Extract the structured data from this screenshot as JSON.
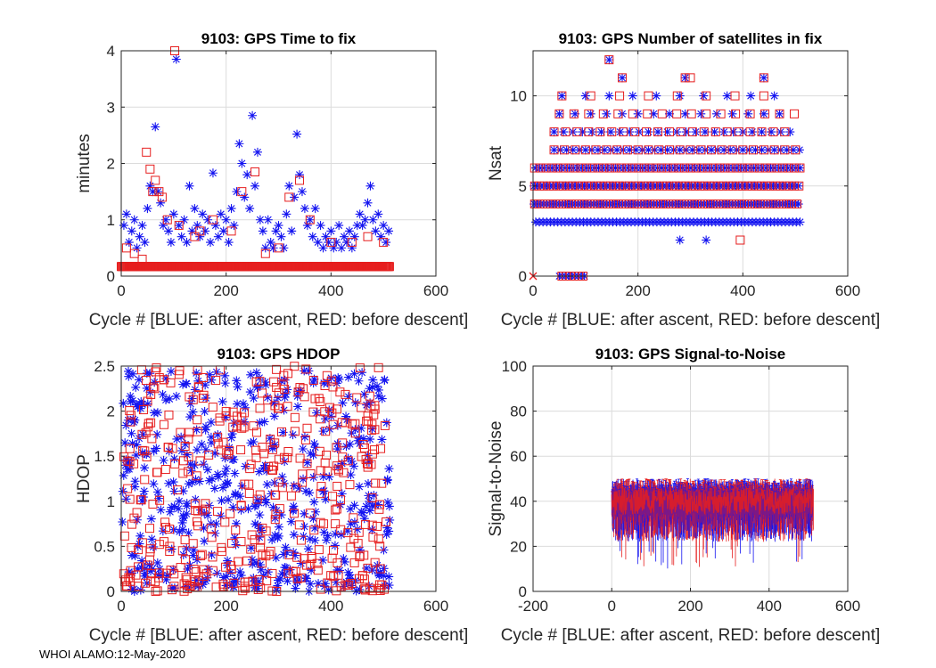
{
  "footer": "WHOI ALAMO:12-May-2020",
  "colors": {
    "blue": "#1414f0",
    "red": "#e61e1e",
    "grid": "#dcdcdc",
    "axis": "#262626"
  },
  "chart_data": [
    {
      "type": "scatter",
      "title": "9103: GPS Time to fix",
      "xlabel": "Cycle #  [BLUE: after ascent, RED: before descent]",
      "ylabel": "minutes",
      "xlim": [
        0,
        600
      ],
      "ylim": [
        0,
        4
      ],
      "xticks": [
        "0",
        "200",
        "400",
        "600"
      ],
      "yticks": [
        "0",
        "1",
        "2",
        "3",
        "4"
      ],
      "grid": true,
      "series": [
        {
          "name": "after ascent",
          "marker": "asterisk",
          "color": "blue",
          "points": [
            [
              5,
              0.9
            ],
            [
              10,
              1.1
            ],
            [
              15,
              0.6
            ],
            [
              20,
              0.8
            ],
            [
              25,
              1.0
            ],
            [
              30,
              0.5
            ],
            [
              35,
              0.7
            ],
            [
              40,
              0.9
            ],
            [
              45,
              0.6
            ],
            [
              50,
              1.2
            ],
            [
              55,
              1.6
            ],
            [
              60,
              1.5
            ],
            [
              65,
              2.65
            ],
            [
              70,
              1.5
            ],
            [
              75,
              1.3
            ],
            [
              80,
              0.9
            ],
            [
              85,
              1.0
            ],
            [
              90,
              0.8
            ],
            [
              95,
              0.6
            ],
            [
              100,
              1.1
            ],
            [
              105,
              3.85
            ],
            [
              110,
              0.9
            ],
            [
              115,
              0.7
            ],
            [
              120,
              1.0
            ],
            [
              125,
              0.6
            ],
            [
              130,
              1.6
            ],
            [
              135,
              0.8
            ],
            [
              140,
              1.2
            ],
            [
              145,
              0.9
            ],
            [
              150,
              0.7
            ],
            [
              155,
              1.1
            ],
            [
              160,
              0.8
            ],
            [
              165,
              1.0
            ],
            [
              170,
              0.6
            ],
            [
              175,
              1.83
            ],
            [
              180,
              0.9
            ],
            [
              185,
              0.7
            ],
            [
              190,
              1.1
            ],
            [
              195,
              0.8
            ],
            [
              200,
              1.0
            ],
            [
              205,
              0.6
            ],
            [
              210,
              1.2
            ],
            [
              215,
              0.9
            ],
            [
              220,
              1.5
            ],
            [
              225,
              2.35
            ],
            [
              230,
              2.0
            ],
            [
              235,
              1.4
            ],
            [
              240,
              1.8
            ],
            [
              245,
              1.2
            ],
            [
              250,
              2.85
            ],
            [
              255,
              1.6
            ],
            [
              260,
              2.2
            ],
            [
              265,
              1.0
            ],
            [
              270,
              0.8
            ],
            [
              275,
              0.5
            ],
            [
              280,
              1.0
            ],
            [
              285,
              0.6
            ],
            [
              290,
              0.5
            ],
            [
              295,
              0.8
            ],
            [
              300,
              0.9
            ],
            [
              305,
              0.7
            ],
            [
              310,
              0.5
            ],
            [
              315,
              1.1
            ],
            [
              320,
              1.6
            ],
            [
              325,
              0.8
            ],
            [
              330,
              1.4
            ],
            [
              335,
              2.52
            ],
            [
              340,
              1.8
            ],
            [
              345,
              1.5
            ],
            [
              350,
              1.2
            ],
            [
              355,
              0.9
            ],
            [
              360,
              1.0
            ],
            [
              365,
              0.7
            ],
            [
              370,
              1.2
            ],
            [
              375,
              0.6
            ],
            [
              380,
              0.9
            ],
            [
              385,
              0.5
            ],
            [
              390,
              0.7
            ],
            [
              395,
              0.6
            ],
            [
              400,
              0.8
            ],
            [
              405,
              0.5
            ],
            [
              410,
              0.6
            ],
            [
              415,
              0.9
            ],
            [
              420,
              0.5
            ],
            [
              425,
              0.7
            ],
            [
              430,
              0.6
            ],
            [
              435,
              0.8
            ],
            [
              440,
              0.5
            ],
            [
              445,
              0.7
            ],
            [
              450,
              0.9
            ],
            [
              455,
              1.1
            ],
            [
              460,
              0.9
            ],
            [
              465,
              1.0
            ],
            [
              470,
              1.3
            ],
            [
              475,
              1.6
            ],
            [
              480,
              1.0
            ],
            [
              485,
              0.8
            ],
            [
              490,
              1.1
            ],
            [
              495,
              0.7
            ],
            [
              500,
              0.9
            ],
            [
              505,
              0.6
            ],
            [
              510,
              0.8
            ]
          ]
        },
        {
          "name": "before descent",
          "marker": "square",
          "color": "red",
          "points": [
            [
              10,
              0.5
            ],
            [
              25,
              0.4
            ],
            [
              40,
              0.3
            ],
            [
              48,
              2.2
            ],
            [
              55,
              1.9
            ],
            [
              60,
              1.5
            ],
            [
              65,
              1.7
            ],
            [
              72,
              1.5
            ],
            [
              78,
              1.4
            ],
            [
              88,
              1.0
            ],
            [
              102,
              4.0
            ],
            [
              110,
              0.9
            ],
            [
              140,
              0.7
            ],
            [
              150,
              0.8
            ],
            [
              175,
              1.0
            ],
            [
              210,
              0.8
            ],
            [
              230,
              1.5
            ],
            [
              255,
              1.85
            ],
            [
              275,
              0.4
            ],
            [
              300,
              0.5
            ],
            [
              320,
              1.4
            ],
            [
              340,
              1.7
            ],
            [
              360,
              1.0
            ],
            [
              400,
              0.6
            ],
            [
              440,
              0.6
            ],
            [
              470,
              0.7
            ],
            [
              500,
              0.6
            ]
          ],
          "baseline": {
            "y": 0.17,
            "from": 0,
            "to": 512,
            "step": 1.5
          }
        }
      ]
    },
    {
      "type": "scatter",
      "title": "9103: GPS Number of satellites in fix",
      "xlabel": "Cycle #  [BLUE: after ascent, RED: before descent]",
      "ylabel": "Nsat",
      "xlim": [
        0,
        600
      ],
      "ylim": [
        0,
        12.5
      ],
      "xticks": [
        "0",
        "200",
        "400",
        "600"
      ],
      "yticks": [
        "0",
        "5",
        "10"
      ],
      "grid": true,
      "series": [
        {
          "name": "after ascent",
          "marker": "asterisk",
          "color": "blue",
          "rows": [
            {
              "y": 3,
              "from": 5,
              "to": 510,
              "step": 7
            },
            {
              "y": 4,
              "from": 2,
              "to": 510,
              "step": 6
            },
            {
              "y": 5,
              "from": 2,
              "to": 510,
              "step": 6
            },
            {
              "y": 6,
              "from": 5,
              "to": 510,
              "step": 8
            },
            {
              "y": 7,
              "from": 40,
              "to": 510,
              "step": 12
            },
            {
              "y": 8,
              "from": 40,
              "to": 490,
              "step": 18
            },
            {
              "y": 9,
              "from": 50,
              "to": 470,
              "step": 30
            },
            {
              "y": 10,
              "from": 55,
              "to": 460,
              "step": 45
            },
            {
              "y": 0,
              "from": 50,
              "to": 100,
              "step": 6
            }
          ],
          "points": [
            [
              145,
              12
            ],
            [
              170,
              11
            ],
            [
              290,
              11
            ],
            [
              440,
              11
            ],
            [
              280,
              2
            ],
            [
              330,
              2
            ]
          ]
        },
        {
          "name": "before descent",
          "marker": "square",
          "color": "red",
          "rows": [
            {
              "y": 4,
              "from": 3,
              "to": 510,
              "step": 10
            },
            {
              "y": 5,
              "from": 3,
              "to": 510,
              "step": 9
            },
            {
              "y": 6,
              "from": 3,
              "to": 510,
              "step": 11
            },
            {
              "y": 7,
              "from": 40,
              "to": 500,
              "step": 20
            },
            {
              "y": 8,
              "from": 40,
              "to": 490,
              "step": 22
            },
            {
              "y": 9,
              "from": 50,
              "to": 510,
              "step": 28
            },
            {
              "y": 10,
              "from": 55,
              "to": 460,
              "step": 55
            },
            {
              "y": 0,
              "from": 55,
              "to": 95,
              "step": 8
            }
          ],
          "points": [
            [
              145,
              12
            ],
            [
              170,
              11
            ],
            [
              290,
              11
            ],
            [
              300,
              11
            ],
            [
              440,
              11
            ],
            [
              395,
              2
            ]
          ]
        }
      ]
    },
    {
      "type": "scatter",
      "title": "9103: GPS HDOP",
      "xlabel": "Cycle #  [BLUE: after ascent, RED: before descent]",
      "ylabel": "HDOP",
      "xlim": [
        0,
        600
      ],
      "ylim": [
        0,
        2.5
      ],
      "xticks": [
        "0",
        "200",
        "400",
        "600"
      ],
      "yticks": [
        "0",
        "0.5",
        "1",
        "1.5",
        "2",
        "2.5"
      ],
      "grid": true,
      "series": [
        {
          "name": "after ascent",
          "marker": "asterisk",
          "color": "blue",
          "random": {
            "count": 520,
            "x": [
              2,
              512
            ],
            "y": [
              0,
              2.45
            ],
            "seed": 11
          }
        },
        {
          "name": "before descent",
          "marker": "square",
          "color": "red",
          "random": {
            "count": 430,
            "x": [
              2,
              512
            ],
            "y": [
              0,
              2.5
            ],
            "seed": 29
          }
        }
      ]
    },
    {
      "type": "errorbar",
      "title": "9103: GPS Signal-to-Noise",
      "xlabel": "Cycle #  [BLUE: after ascent, RED: before descent]",
      "ylabel": "Signal-to-Noise",
      "xlim": [
        -200,
        600
      ],
      "ylim": [
        0,
        100
      ],
      "xticks": [
        "-200",
        "0",
        "200",
        "400",
        "600"
      ],
      "yticks": [
        "0",
        "20",
        "40",
        "60",
        "80",
        "100"
      ],
      "grid": true,
      "band": {
        "x": [
          0,
          512
        ],
        "mean": 40,
        "upper": [
          44,
          50
        ],
        "lower": [
          22,
          35
        ],
        "min_low": 10
      },
      "series": [
        {
          "name": "after ascent",
          "color": "blue"
        },
        {
          "name": "before descent",
          "color": "red"
        }
      ]
    }
  ]
}
